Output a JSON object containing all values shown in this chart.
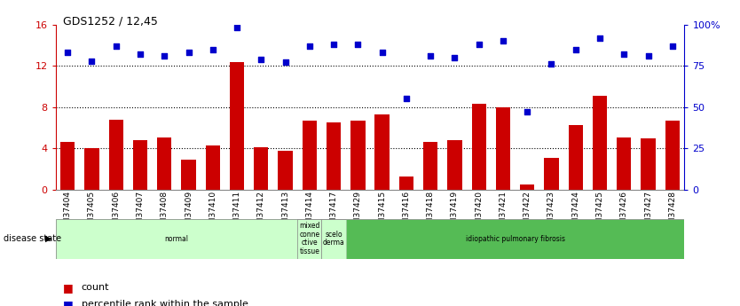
{
  "title": "GDS1252 / 12,45",
  "samples": [
    "GSM37404",
    "GSM37405",
    "GSM37406",
    "GSM37407",
    "GSM37408",
    "GSM37409",
    "GSM37410",
    "GSM37411",
    "GSM37412",
    "GSM37413",
    "GSM37414",
    "GSM37417",
    "GSM37429",
    "GSM37415",
    "GSM37416",
    "GSM37418",
    "GSM37419",
    "GSM37420",
    "GSM37421",
    "GSM37422",
    "GSM37423",
    "GSM37424",
    "GSM37425",
    "GSM37426",
    "GSM37427",
    "GSM37428"
  ],
  "counts": [
    4.6,
    4.0,
    6.8,
    4.8,
    5.1,
    2.9,
    4.3,
    12.4,
    4.1,
    3.8,
    6.7,
    6.5,
    6.7,
    7.3,
    1.3,
    4.6,
    4.8,
    8.3,
    8.0,
    0.5,
    3.1,
    6.3,
    9.1,
    5.1,
    5.0,
    6.7
  ],
  "percentiles": [
    83,
    78,
    87,
    82,
    81,
    83,
    85,
    98,
    79,
    77,
    87,
    88,
    88,
    83,
    55,
    81,
    80,
    88,
    90,
    47,
    76,
    85,
    92,
    82,
    81,
    87
  ],
  "bar_color": "#cc0000",
  "dot_color": "#0000cc",
  "ylim_left": [
    0,
    16
  ],
  "ylim_right": [
    0,
    100
  ],
  "yticks_left": [
    0,
    4,
    8,
    12,
    16
  ],
  "yticks_right": [
    0,
    25,
    50,
    75,
    100
  ],
  "ytick_labels_right": [
    "0",
    "25",
    "50",
    "75",
    "100%"
  ],
  "disease_groups": [
    {
      "label": "normal",
      "start": 0,
      "end": 10,
      "color": "#ccffcc",
      "border": "#aaddaa"
    },
    {
      "label": "mixed\nconne\nctive\ntissue",
      "start": 10,
      "end": 11,
      "color": "#ccffcc",
      "border": "#888888"
    },
    {
      "label": "scelo\nderma",
      "start": 11,
      "end": 12,
      "color": "#ccffcc",
      "border": "#888888"
    },
    {
      "label": "idiopathic pulmonary fibrosis",
      "start": 12,
      "end": 26,
      "color": "#55bb55",
      "border": "#aaddaa"
    }
  ],
  "disease_state_label": "disease state",
  "legend_count_label": "count",
  "legend_pct_label": "percentile rank within the sample",
  "background_color": "#ffffff",
  "axis_label_color_left": "#cc0000",
  "axis_label_color_right": "#0000cc"
}
